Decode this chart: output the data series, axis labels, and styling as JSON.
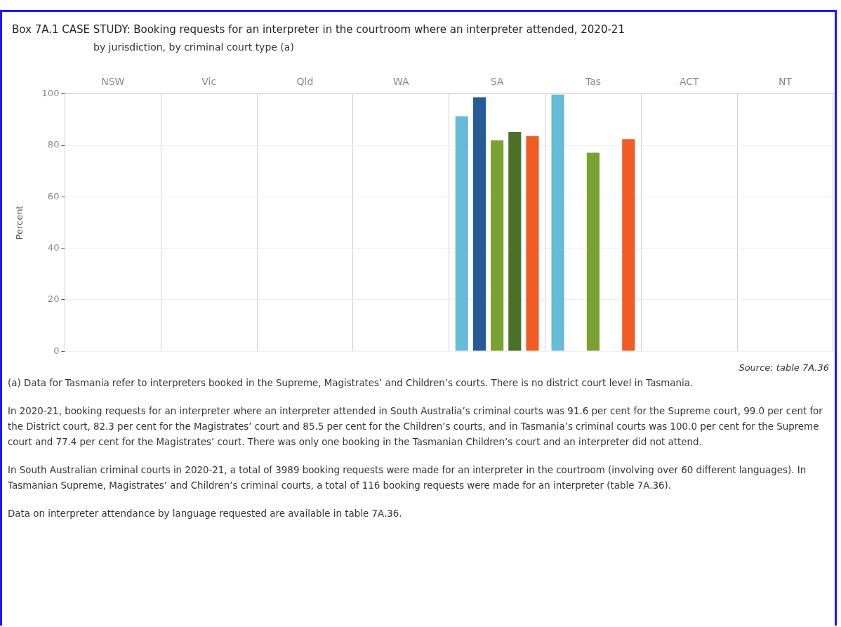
{
  "chart_data": {
    "type": "bar",
    "title": "Box 7A.1 CASE STUDY: Booking requests for an interpreter in the courtroom where an interpreter attended, 2020-21",
    "subtitle": "by jurisdiction, by criminal court type (a)",
    "ylabel": "Percent",
    "categories": [
      "NSW",
      "Vic",
      "Qld",
      "WA",
      "SA",
      "Tas",
      "ACT",
      "NT"
    ],
    "series": [
      {
        "color": "#66bbdb",
        "values": [
          null,
          null,
          null,
          null,
          91.6,
          100.0,
          null,
          null
        ]
      },
      {
        "color": "#275b98",
        "values": [
          null,
          null,
          null,
          null,
          99.0,
          null,
          null,
          null
        ]
      },
      {
        "color": "#7aa232",
        "values": [
          null,
          null,
          null,
          null,
          82.3,
          77.4,
          null,
          null
        ]
      },
      {
        "color": "#4b7128",
        "values": [
          null,
          null,
          null,
          null,
          85.5,
          null,
          null,
          null
        ]
      },
      {
        "color": "#f15c26",
        "values": [
          null,
          null,
          null,
          null,
          83.9,
          82.7,
          null,
          null
        ]
      }
    ],
    "ylim": [
      0,
      100
    ],
    "yticks": [
      0,
      20,
      40,
      60,
      80,
      100
    ],
    "grid": "y",
    "legend": false,
    "annotations": [
      "Source: table 7A.36",
      "(a) Data for Tasmania refer to interpreters booked in the Supreme, Magistrates’ and Children’s courts. There is no district court level in Tasmania.",
      "In 2020-21, booking requests for an interpreter where an interpreter attended in South Australia’s criminal courts was 91.6 per cent for the Supreme court, 99.0 per cent for the District court, 82.3 per cent for the  Magistrates’ court and 85.5 per cent for the Children’s courts, and in Tasmania’s criminal courts was 100.0 per cent for the Supreme court and 77.4 per cent for the Magistrates’ court. There was only one booking in the Tasmanian Children’s court and an interpreter did not attend.",
      "In South Australian criminal courts in 2020-21, a total of 3989 booking requests were made for an interpreter in the courtroom (involving over 60 different languages). In Tasmanian Supreme, Magistrates’ and Children’s criminal courts, a total of 116 booking requests were made for an interpreter (table 7A.36).",
      "Data on interpreter attendance by language requested are available in table 7A.36."
    ]
  }
}
